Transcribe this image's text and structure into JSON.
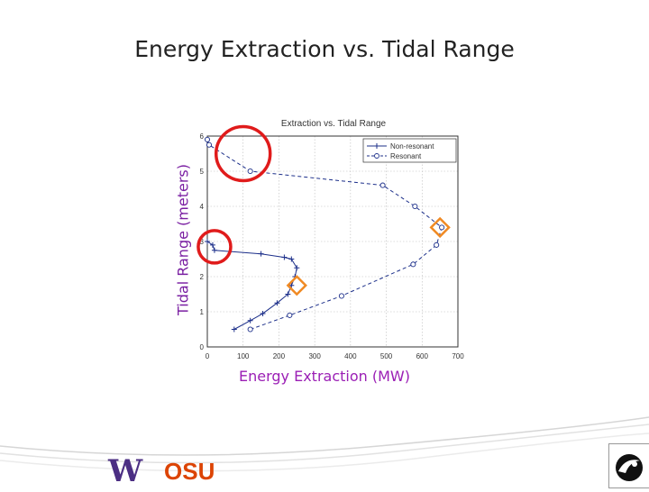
{
  "slide": {
    "title": "Energy Extraction vs. Tidal Range",
    "y_axis_label": "Tidal Range (meters)",
    "x_axis_label": "Energy Extraction (MW)"
  },
  "logos": {
    "left_primary": "W",
    "left_secondary": "OSU"
  },
  "colors": {
    "title": "#222222",
    "ylabel": "#7a1fa2",
    "xlabel": "#9b1fb5",
    "highlight_circle": "#e01b1b",
    "highlight_diamond": "#f08a24",
    "series": "#1c2f8a"
  },
  "chart_data": {
    "type": "line",
    "title": "Extraction vs. Tidal Range",
    "xlim": [
      0,
      700
    ],
    "ylim": [
      0,
      6
    ],
    "xticks": [
      0,
      100,
      200,
      300,
      400,
      500,
      600,
      700
    ],
    "yticks": [
      0,
      1,
      2,
      3,
      4,
      5,
      6
    ],
    "grid": true,
    "legend_position": "top-right",
    "series": [
      {
        "name": "Non-resonant",
        "style": "solid",
        "marker": "+",
        "points": [
          [
            75,
            0.5
          ],
          [
            120,
            0.75
          ],
          [
            155,
            0.95
          ],
          [
            195,
            1.25
          ],
          [
            225,
            1.5
          ],
          [
            235,
            1.75
          ],
          [
            245,
            2.0
          ],
          [
            250,
            2.25
          ],
          [
            235,
            2.5
          ],
          [
            215,
            2.55
          ],
          [
            150,
            2.65
          ],
          [
            20,
            2.75
          ],
          [
            15,
            2.9
          ],
          [
            0,
            3.0
          ]
        ]
      },
      {
        "name": "Resonant",
        "style": "dashed",
        "marker": "o",
        "points": [
          [
            120,
            0.5
          ],
          [
            230,
            0.9
          ],
          [
            375,
            1.45
          ],
          [
            575,
            2.35
          ],
          [
            640,
            2.9
          ],
          [
            655,
            3.4
          ],
          [
            580,
            4.0
          ],
          [
            490,
            4.6
          ],
          [
            120,
            5.0
          ],
          [
            5,
            5.75
          ],
          [
            0,
            5.9
          ]
        ]
      }
    ],
    "highlights": [
      {
        "kind": "circle",
        "at": [
          100,
          5.5
        ]
      },
      {
        "kind": "circle",
        "at": [
          20,
          2.85
        ]
      },
      {
        "kind": "diamond",
        "at": [
          650,
          3.4
        ]
      },
      {
        "kind": "diamond",
        "at": [
          250,
          1.75
        ]
      }
    ]
  }
}
